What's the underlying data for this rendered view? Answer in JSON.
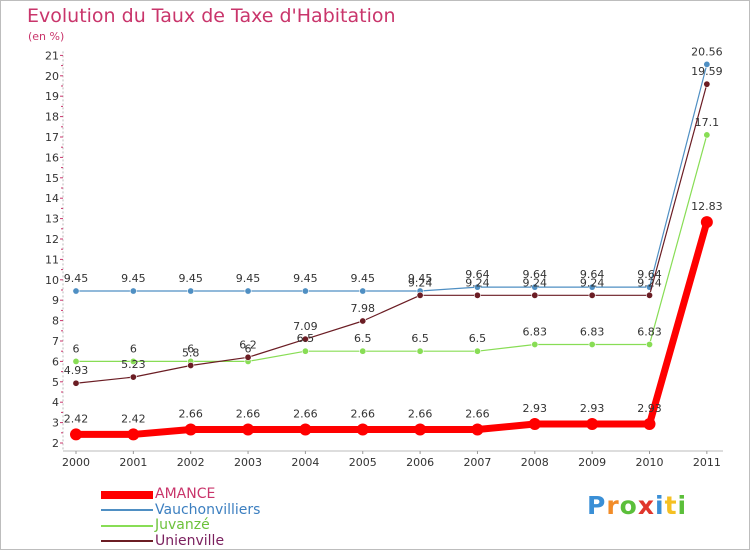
{
  "title": "Evolution du Taux de Taxe d'Habitation",
  "unit_label": "(en %)",
  "logo_text": "Proxiti",
  "chart_data": {
    "type": "line",
    "title": "Evolution du Taux de Taxe d'Habitation",
    "ylabel": "(en %)",
    "xlabel": "",
    "x": [
      "2000",
      "2001",
      "2002",
      "2003",
      "2004",
      "2005",
      "2006",
      "2007",
      "2008",
      "2009",
      "2010",
      "2011"
    ],
    "ylim": [
      2,
      21
    ],
    "yticks": [
      2,
      3,
      4,
      5,
      6,
      7,
      8,
      9,
      10,
      11,
      12,
      13,
      14,
      15,
      16,
      17,
      18,
      19,
      20,
      21
    ],
    "grid": false,
    "legend_position": "bottom-left",
    "series": [
      {
        "name": "AMANCE",
        "color": "#ff0000",
        "values": [
          2.42,
          2.42,
          2.66,
          2.66,
          2.66,
          2.66,
          2.66,
          2.66,
          2.93,
          2.93,
          2.93,
          12.83
        ],
        "labels": [
          "2.42",
          "2.42",
          "2.66",
          "2.66",
          "2.66",
          "2.66",
          "2.66",
          "2.66",
          "2.93",
          "2.93",
          "2.93",
          "12.83"
        ]
      },
      {
        "name": "Vauchonvilliers",
        "color": "#4f8fc3",
        "values": [
          9.45,
          9.45,
          9.45,
          9.45,
          9.45,
          9.45,
          9.45,
          9.64,
          9.64,
          9.64,
          9.64,
          20.56
        ],
        "labels": [
          "9.45",
          "9.45",
          "9.45",
          "9.45",
          "9.45",
          "9.45",
          "9.45",
          "9.64",
          "9.64",
          "9.64",
          "9.64",
          "20.56"
        ]
      },
      {
        "name": "Juvanzé",
        "color": "#88dd55",
        "values": [
          6,
          6,
          6,
          6,
          6.5,
          6.5,
          6.5,
          6.5,
          6.83,
          6.83,
          6.83,
          17.1
        ],
        "labels": [
          "6",
          "6",
          "6",
          "6",
          "6.5",
          "6.5",
          "6.5",
          "6.5",
          "6.83",
          "6.83",
          "6.83",
          "17.1"
        ]
      },
      {
        "name": "Unienville",
        "color": "#6b1d24",
        "values": [
          4.93,
          5.23,
          5.8,
          6.2,
          7.09,
          7.98,
          9.24,
          9.24,
          9.24,
          9.24,
          9.24,
          19.59
        ],
        "labels": [
          "4.93",
          "5.23",
          "5.8",
          "6.2",
          "7.09",
          "7.98",
          "9.24",
          "9.24",
          "9.24",
          "9.24",
          "9.24",
          "19.59"
        ]
      }
    ]
  }
}
